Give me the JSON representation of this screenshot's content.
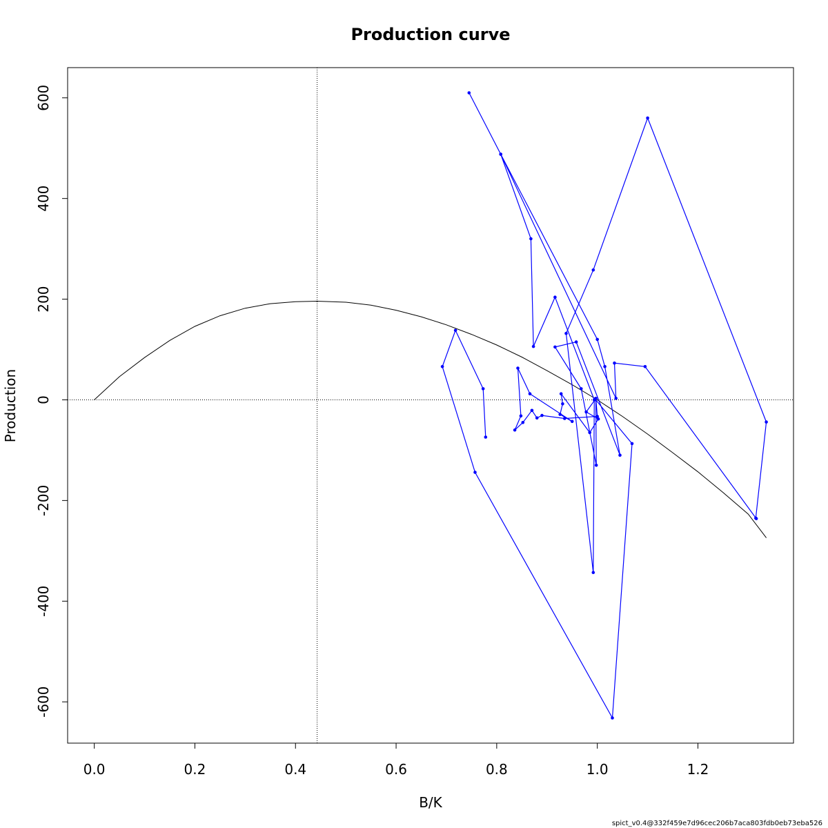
{
  "chart_data": {
    "type": "line",
    "title": "Production curve",
    "xlabel": "B/K",
    "ylabel": "Production",
    "footer": "spict_v0.4@332f459e7d96cec206b7aca803fdb0eb73eba526",
    "xlim": [
      -0.053,
      1.39
    ],
    "ylim": [
      -682,
      660
    ],
    "x_ticks": [
      0.0,
      0.2,
      0.4,
      0.6,
      0.8,
      1.0,
      1.2
    ],
    "x_tick_labels": [
      "0.0",
      "0.2",
      "0.4",
      "0.6",
      "0.8",
      "1.0",
      "1.2"
    ],
    "y_ticks": [
      -600,
      -400,
      -200,
      0,
      200,
      400,
      600
    ],
    "y_tick_labels": [
      "-600",
      "-400",
      "-200",
      "0",
      "200",
      "400",
      "600"
    ],
    "reference_lines": {
      "vertical_x": 0.443,
      "horizontal_y": 0
    },
    "colors": {
      "curve": "#000000",
      "series": "#0000ff",
      "reference": "#000000"
    },
    "curve": {
      "name": "production function",
      "points": [
        [
          0.0,
          0
        ],
        [
          0.05,
          46
        ],
        [
          0.1,
          84
        ],
        [
          0.15,
          118
        ],
        [
          0.2,
          146
        ],
        [
          0.25,
          167
        ],
        [
          0.3,
          182
        ],
        [
          0.35,
          191
        ],
        [
          0.4,
          195
        ],
        [
          0.443,
          196
        ],
        [
          0.5,
          194
        ],
        [
          0.55,
          188
        ],
        [
          0.6,
          178
        ],
        [
          0.65,
          165
        ],
        [
          0.7,
          149
        ],
        [
          0.75,
          130
        ],
        [
          0.8,
          109
        ],
        [
          0.85,
          85
        ],
        [
          0.9,
          58
        ],
        [
          0.95,
          30
        ],
        [
          1.0,
          0
        ],
        [
          1.05,
          -33
        ],
        [
          1.1,
          -68
        ],
        [
          1.15,
          -105
        ],
        [
          1.2,
          -143
        ],
        [
          1.25,
          -184
        ],
        [
          1.3,
          -227
        ],
        [
          1.336,
          -274
        ]
      ]
    },
    "series": [
      {
        "points": [
          [
            0.745,
            610
          ],
          [
            0.808,
            488
          ],
          [
            0.868,
            320
          ],
          [
            0.873,
            106
          ],
          [
            0.916,
            204
          ],
          [
            0.994,
            0
          ],
          [
            0.992,
            -343
          ],
          [
            0.938,
            132
          ],
          [
            0.992,
            258
          ],
          [
            1.1,
            560
          ],
          [
            1.336,
            -44
          ],
          [
            1.315,
            -235
          ],
          [
            1.316,
            -236
          ],
          [
            1.095,
            66
          ],
          [
            1.034,
            73
          ],
          [
            1.037,
            3
          ],
          [
            0.808,
            488
          ],
          [
            1.0,
            120
          ],
          [
            1.015,
            66
          ],
          [
            1.045,
            -110
          ],
          [
            0.958,
            115
          ],
          [
            0.916,
            105
          ],
          [
            0.968,
            22
          ],
          [
            0.998,
            -130
          ],
          [
            0.997,
            3
          ],
          [
            1.0,
            -33
          ],
          [
            0.935,
            -37
          ],
          [
            0.89,
            -31
          ],
          [
            0.88,
            -36
          ],
          [
            0.87,
            -21
          ],
          [
            0.852,
            -45
          ],
          [
            0.836,
            -60
          ],
          [
            0.848,
            -32
          ],
          [
            0.842,
            63
          ],
          [
            0.866,
            12
          ],
          [
            0.95,
            -43
          ],
          [
            0.926,
            -29
          ],
          [
            0.931,
            -8
          ],
          [
            0.928,
            12
          ],
          [
            0.985,
            -65
          ],
          [
            1.002,
            -38
          ],
          [
            0.978,
            -24
          ],
          [
            0.996,
            1
          ],
          [
            1.069,
            -87
          ],
          [
            1.03,
            -632
          ],
          [
            0.757,
            -144
          ],
          [
            0.692,
            66
          ],
          [
            0.718,
            138
          ],
          [
            0.773,
            22
          ],
          [
            0.778,
            -74
          ]
        ]
      }
    ]
  }
}
